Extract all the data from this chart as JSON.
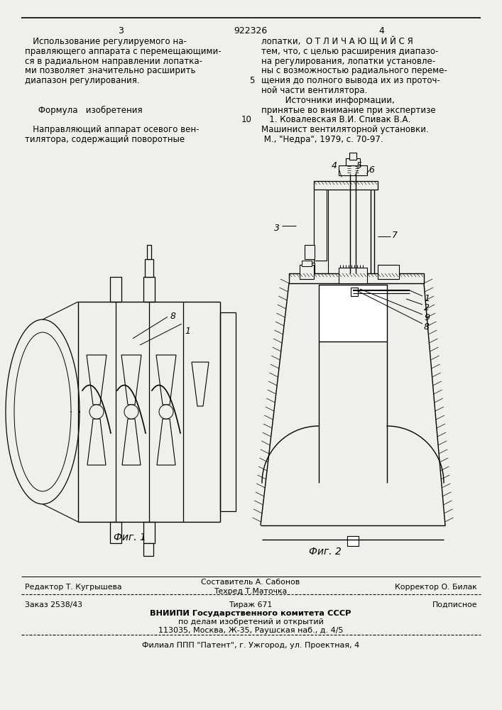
{
  "bg_color": "#f0f0eb",
  "page_number_left": "3",
  "patent_number": "922326",
  "page_number_right": "4",
  "left_col_text": [
    "   Использование регулируемого на-",
    "правляющего аппарата с перемещающими-",
    "ся в радиальном направлении лопатка-",
    "ми позволяет значительно расширить",
    "диапазон регулирования.",
    "",
    "",
    "     Формула   изобретения",
    "",
    "   Направляющий аппарат осевого вен-",
    "тилятора, содержащий поворотные"
  ],
  "right_col_text": [
    "лопатки,  О Т Л И Ч А Ю Щ И Й С Я",
    "тем, что, с целью расширения диапазо-",
    "на регулирования, лопатки установле-",
    "ны с возможностью радиального переме-",
    "щения до полного вывода их из проточ-",
    "ной части вентилятора.",
    "         Источники информации,",
    "принятые во внимание при экспертизе",
    "   1. Ковалевская В.И. Спивак В.А.",
    "Машинист вентиляторной установки.",
    " М., \"Недра\", 1979, с. 70-97."
  ],
  "fig1_caption": "Фиг. 1",
  "fig2_caption": "Фиг. 2",
  "footer_line1_left": "Редактор Т. Кугрышева",
  "footer_line1_center": "Составитель А. Сабонов",
  "footer_line1_right": "Корректор О. Билак",
  "footer_line2_center": "Техред Т.Маточка",
  "footer_line3_left": "Заказ 2538/43",
  "footer_line3_center": "Тираж 671",
  "footer_line3_right": "Подписное",
  "footer_line4": "ВНИИПИ Государственного комитета СССР",
  "footer_line5": "по делам изобретений и открытий",
  "footer_line6": "113035, Москва, Ж-35, Раушская наб., д. 4/5",
  "footer_line7": "Филиал ППП \"Патент\", г. Ужгород, ул. Проектная, 4"
}
